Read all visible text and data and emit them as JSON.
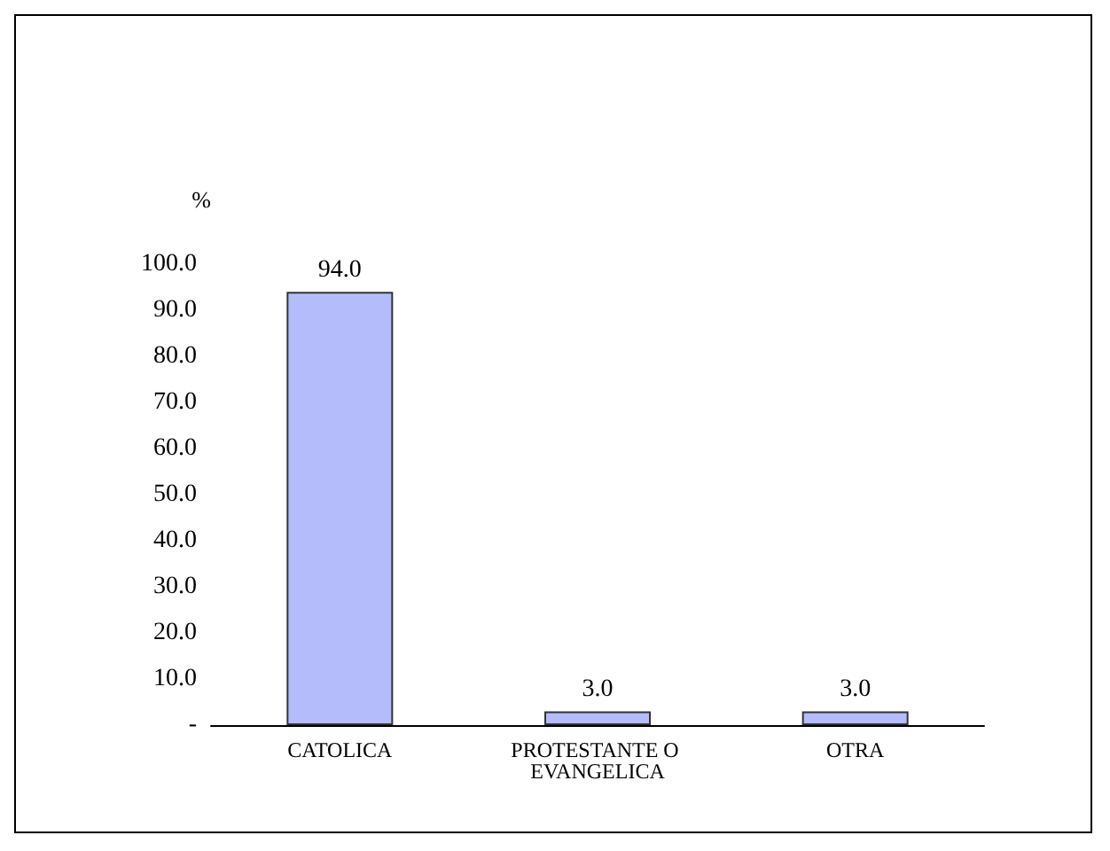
{
  "chart_data": {
    "type": "bar",
    "ylabel": "%",
    "categories": [
      "CATOLICA",
      "PROTESTANTE O EVANGELICA",
      "OTRA"
    ],
    "values": [
      94.0,
      3.0,
      3.0
    ],
    "value_labels": [
      "94.0",
      "3.0",
      "3.0"
    ],
    "color": "#b4bcfc",
    "ylim": [
      0,
      100
    ],
    "yticks": [
      {
        "value": 0,
        "label": "-"
      },
      {
        "value": 10,
        "label": "10.0"
      },
      {
        "value": 20,
        "label": "20.0"
      },
      {
        "value": 30,
        "label": "30.0"
      },
      {
        "value": 40,
        "label": "40.0"
      },
      {
        "value": 50,
        "label": "50.0"
      },
      {
        "value": 60,
        "label": "60.0"
      },
      {
        "value": 70,
        "label": "70.0"
      },
      {
        "value": 80,
        "label": "80.0"
      },
      {
        "value": 90,
        "label": "90.0"
      },
      {
        "value": 100,
        "label": "100.0"
      }
    ],
    "grid": false
  }
}
